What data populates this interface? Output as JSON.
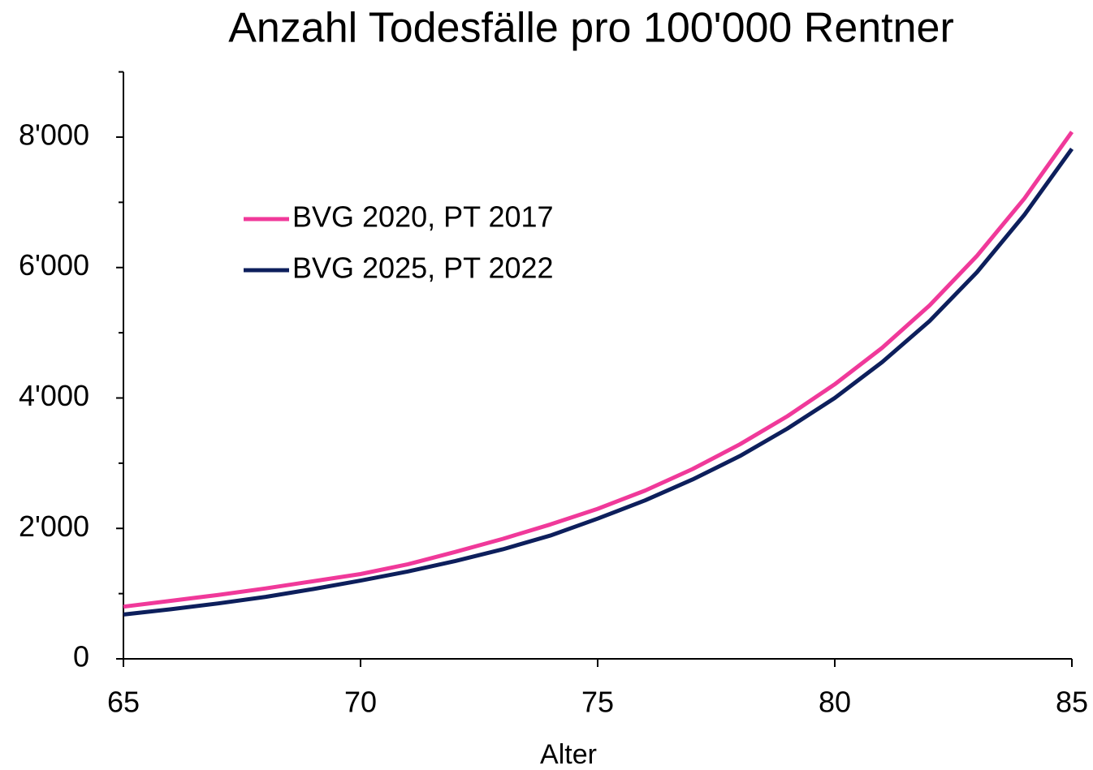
{
  "chart_data": {
    "type": "line",
    "title": "Anzahl Todesfälle pro 100'000 Rentner",
    "x_label": "Alter",
    "x": [
      65,
      66,
      67,
      68,
      69,
      70,
      71,
      72,
      73,
      74,
      75,
      76,
      77,
      78,
      79,
      80,
      81,
      82,
      83,
      84,
      85
    ],
    "series": [
      {
        "name": "BVG 2020, PT 2017",
        "color": "#f0399a",
        "values": [
          800,
          890,
          980,
          1080,
          1190,
          1300,
          1450,
          1640,
          1840,
          2060,
          2300,
          2580,
          2910,
          3290,
          3720,
          4210,
          4770,
          5420,
          6180,
          7060,
          8080
        ]
      },
      {
        "name": "BVG 2025, PT 2022",
        "color": "#0d1f5c",
        "values": [
          680,
          760,
          850,
          950,
          1070,
          1200,
          1340,
          1500,
          1680,
          1890,
          2150,
          2430,
          2750,
          3110,
          3530,
          4000,
          4550,
          5180,
          5930,
          6810,
          7820
        ]
      }
    ],
    "xlim": [
      65,
      85
    ],
    "xticks": [
      65,
      70,
      75,
      80,
      85
    ],
    "ylim": [
      0,
      9000
    ],
    "yticks": [
      0,
      {
        "value": 2000,
        "label": "2'000"
      },
      {
        "value": 4000,
        "label": "4'000"
      },
      {
        "value": 6000,
        "label": "6'000"
      },
      {
        "value": 8000,
        "label": "8'000"
      }
    ],
    "yminor_ticks": [
      1000,
      3000,
      5000,
      7000,
      9000
    ],
    "grid": false,
    "legend_position": "upper left"
  }
}
